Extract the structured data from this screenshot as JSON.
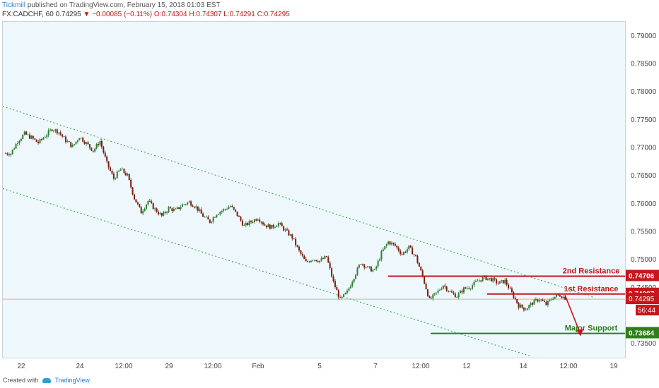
{
  "header": {
    "publisher": "Tickmill",
    "published_text": "published on TradingView.com, February 15, 2018 01:03 EST",
    "symbol": "FX:CADCHF, 60",
    "last": "0.74295",
    "change": "▼ −0.00085 (−0.11%)",
    "open": "O:0.74304",
    "high": "H:0.74307",
    "low": "L:0.74291",
    "close": "C:0.74295"
  },
  "footer": {
    "created_with": "Created with",
    "brand": "TradingView"
  },
  "chart_data": {
    "type": "candlestick",
    "symbol": "FX:CADCHF",
    "interval": "60",
    "ylim": [
      0.7325,
      0.7925
    ],
    "yticks": [
      "0.79000",
      "0.78500",
      "0.78000",
      "0.77500",
      "0.77000",
      "0.76500",
      "0.76000",
      "0.75500",
      "0.75000",
      "0.74500",
      "0.73500"
    ],
    "xticks": [
      "22",
      "24",
      "12:00",
      "29",
      "12:00",
      "Feb",
      "5",
      "7",
      "12:00",
      "12",
      "14",
      "12:00",
      "19"
    ],
    "price_path": [
      0.769,
      0.7712,
      0.7725,
      0.7718,
      0.7709,
      0.7721,
      0.7734,
      0.7728,
      0.7713,
      0.7702,
      0.772,
      0.7708,
      0.7695,
      0.7712,
      0.7672,
      0.7645,
      0.7662,
      0.765,
      0.761,
      0.7585,
      0.7605,
      0.759,
      0.7578,
      0.7592,
      0.7588,
      0.7598,
      0.7603,
      0.7594,
      0.7578,
      0.7568,
      0.7583,
      0.7589,
      0.7596,
      0.758,
      0.756,
      0.7568,
      0.7575,
      0.7562,
      0.7558,
      0.7565,
      0.7552,
      0.754,
      0.7515,
      0.7495,
      0.7502,
      0.7498,
      0.7505,
      0.746,
      0.7428,
      0.7442,
      0.747,
      0.7495,
      0.7485,
      0.748,
      0.7512,
      0.7532,
      0.7525,
      0.751,
      0.7522,
      0.7505,
      0.747,
      0.7428,
      0.744,
      0.7455,
      0.7442,
      0.7435,
      0.7448,
      0.7452,
      0.7462,
      0.7468,
      0.7465,
      0.7458,
      0.7462,
      0.744,
      0.7418,
      0.7412,
      0.7423,
      0.743,
      0.742,
      0.7433,
      0.7437,
      0.743
    ],
    "last_price": "0.74295",
    "countdown": "56:44",
    "levels": [
      {
        "name": "2nd Resistance",
        "value": 0.74706,
        "label": "0.74706",
        "color": "#c4161c"
      },
      {
        "name": "1st Resistance",
        "value": 0.74387,
        "label": "0.74387",
        "color": "#c4161c"
      },
      {
        "name": "Major Support",
        "value": 0.73684,
        "label": "0.73684",
        "color": "#2e7d18"
      }
    ],
    "channel_color": "#2e9e3a",
    "up_color": "#2e7d32",
    "down_color": "#7a1c10"
  }
}
